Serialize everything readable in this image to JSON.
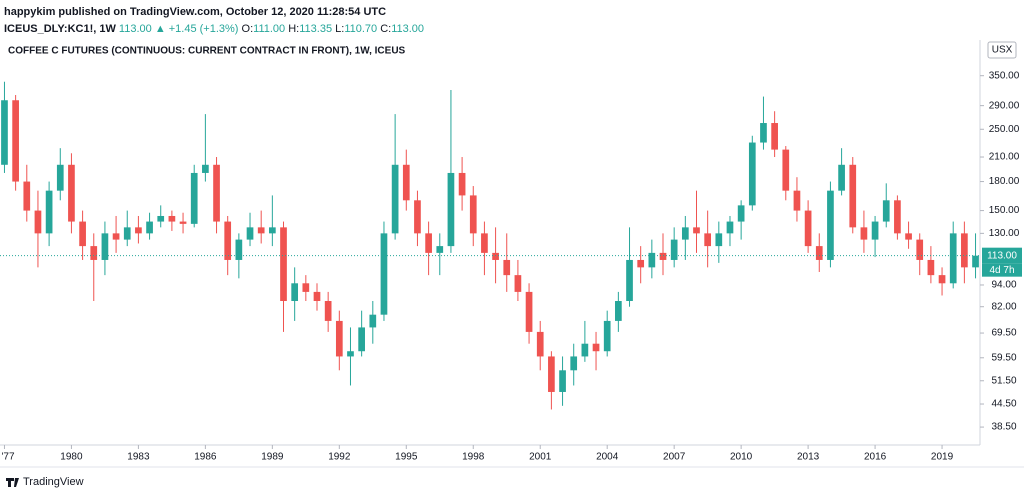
{
  "header": {
    "publisher_line": "happykim published on TradingView.com, October 12, 2020 11:28:54 UTC",
    "symbol": "ICEUS_DLY:KC1!, 1W",
    "last": "113.00",
    "change": "▲ +1.45 (+1.3%)",
    "ohlc": [
      {
        "label": "O:",
        "value": "111.00"
      },
      {
        "label": "H:",
        "value": "113.35"
      },
      {
        "label": "L:",
        "value": "110.70"
      },
      {
        "label": "C:",
        "value": "113.00"
      }
    ]
  },
  "footer": {
    "brand": "TradingView"
  },
  "chart_data": {
    "type": "candlestick",
    "title": "COFFEE C FUTURES (CONTINUOUS: CURRENT CONTRACT IN FRONT), 1W, ICEUS",
    "currency": "USX",
    "up_color": "#26a69a",
    "down_color": "#ef5350",
    "log_scale": true,
    "x": [
      1977.0,
      1977.5,
      1978.0,
      1978.5,
      1979.0,
      1979.5,
      1980.0,
      1980.5,
      1981.0,
      1981.5,
      1982.0,
      1982.5,
      1983.0,
      1983.5,
      1984.0,
      1984.5,
      1985.0,
      1985.5,
      1986.0,
      1986.5,
      1987.0,
      1987.5,
      1988.0,
      1988.5,
      1989.0,
      1989.5,
      1990.0,
      1990.5,
      1991.0,
      1991.5,
      1992.0,
      1992.5,
      1993.0,
      1993.5,
      1994.0,
      1994.5,
      1995.0,
      1995.5,
      1996.0,
      1996.5,
      1997.0,
      1997.5,
      1998.0,
      1998.5,
      1999.0,
      1999.5,
      2000.0,
      2000.5,
      2001.0,
      2001.5,
      2002.0,
      2002.5,
      2003.0,
      2003.5,
      2004.0,
      2004.5,
      2005.0,
      2005.5,
      2006.0,
      2006.5,
      2007.0,
      2007.5,
      2008.0,
      2008.5,
      2009.0,
      2009.5,
      2010.0,
      2010.5,
      2011.0,
      2011.5,
      2012.0,
      2012.5,
      2013.0,
      2013.5,
      2014.0,
      2014.5,
      2015.0,
      2015.5,
      2016.0,
      2016.5,
      2017.0,
      2017.5,
      2018.0,
      2018.5,
      2019.0,
      2019.5,
      2020.0,
      2020.5
    ],
    "open": [
      200,
      300,
      180,
      150,
      130,
      170,
      200,
      140,
      120,
      110,
      130,
      125,
      135,
      130,
      140,
      145,
      140,
      138,
      190,
      200,
      140,
      110,
      125,
      135,
      130,
      135,
      85,
      95,
      90,
      85,
      75,
      60,
      62,
      72,
      78,
      130,
      200,
      160,
      130,
      115,
      120,
      190,
      165,
      130,
      115,
      110,
      100,
      90,
      70,
      60,
      48,
      55,
      60,
      65,
      62,
      75,
      85,
      110,
      105,
      115,
      110,
      125,
      135,
      130,
      120,
      130,
      140,
      155,
      230,
      260,
      220,
      170,
      150,
      120,
      110,
      170,
      200,
      135,
      125,
      140,
      160,
      130,
      125,
      110,
      100,
      95,
      130,
      105
    ],
    "high": [
      337,
      310,
      200,
      170,
      180,
      222,
      215,
      150,
      130,
      140,
      145,
      150,
      145,
      148,
      155,
      150,
      148,
      200,
      275,
      210,
      145,
      130,
      148,
      150,
      165,
      140,
      105,
      100,
      95,
      90,
      80,
      72,
      80,
      85,
      140,
      275,
      220,
      170,
      140,
      130,
      320,
      210,
      175,
      140,
      135,
      130,
      110,
      95,
      75,
      62,
      60,
      65,
      75,
      70,
      80,
      90,
      135,
      120,
      125,
      130,
      135,
      145,
      170,
      150,
      140,
      145,
      160,
      240,
      307,
      280,
      225,
      185,
      160,
      130,
      180,
      222,
      210,
      150,
      145,
      178,
      165,
      140,
      130,
      120,
      105,
      140,
      140,
      130
    ],
    "low": [
      190,
      170,
      140,
      105,
      120,
      160,
      130,
      110,
      85,
      100,
      115,
      120,
      122,
      125,
      135,
      132,
      130,
      135,
      180,
      130,
      100,
      98,
      120,
      122,
      120,
      70,
      75,
      85,
      80,
      70,
      55,
      50,
      60,
      65,
      75,
      125,
      150,
      120,
      100,
      100,
      115,
      150,
      120,
      100,
      95,
      90,
      85,
      65,
      55,
      43,
      44,
      50,
      58,
      55,
      60,
      70,
      82,
      95,
      98,
      100,
      105,
      110,
      115,
      105,
      108,
      120,
      125,
      150,
      220,
      210,
      160,
      140,
      115,
      102,
      105,
      165,
      130,
      115,
      112,
      135,
      125,
      118,
      100,
      95,
      88,
      92,
      95,
      98
    ],
    "close": [
      300,
      180,
      150,
      130,
      170,
      200,
      140,
      120,
      110,
      130,
      125,
      135,
      130,
      140,
      145,
      140,
      138,
      190,
      200,
      140,
      110,
      125,
      135,
      130,
      135,
      85,
      95,
      90,
      85,
      75,
      60,
      62,
      72,
      78,
      130,
      200,
      160,
      130,
      115,
      120,
      190,
      165,
      130,
      115,
      110,
      100,
      90,
      70,
      60,
      48,
      55,
      60,
      65,
      62,
      75,
      85,
      110,
      105,
      115,
      110,
      125,
      135,
      130,
      120,
      130,
      140,
      155,
      230,
      260,
      220,
      170,
      150,
      120,
      110,
      170,
      200,
      135,
      125,
      140,
      160,
      130,
      125,
      110,
      100,
      95,
      130,
      105,
      113
    ],
    "price_label": {
      "value": 113,
      "label": "113.00"
    },
    "countdown": "4d 7h",
    "xlim": [
      1976.8,
      2020.7
    ],
    "xticks": [
      {
        "value": 1977,
        "label": "'77"
      },
      1980,
      1983,
      1986,
      1989,
      1992,
      1995,
      1998,
      2001,
      2004,
      2007,
      2010,
      2013,
      2016,
      2019
    ],
    "ylim": [
      34.4,
      438
    ],
    "yticks": [
      {
        "value": 38.5,
        "label": "38.50"
      },
      {
        "value": 44.5,
        "label": "44.50"
      },
      {
        "value": 51.5,
        "label": "51.50"
      },
      {
        "value": 59.5,
        "label": "59.50"
      },
      {
        "value": 69.5,
        "label": "69.50"
      },
      {
        "value": 82,
        "label": "82.00"
      },
      {
        "value": 94,
        "label": "94.00"
      },
      {
        "value": 130,
        "label": "130.00"
      },
      {
        "value": 150,
        "label": "150.00"
      },
      {
        "value": 180,
        "label": "180.00"
      },
      {
        "value": 210,
        "label": "210.00"
      },
      {
        "value": 250,
        "label": "250.00"
      },
      {
        "value": 290,
        "label": "290.00"
      },
      {
        "value": 350,
        "label": "350.00"
      }
    ],
    "grid": false
  }
}
